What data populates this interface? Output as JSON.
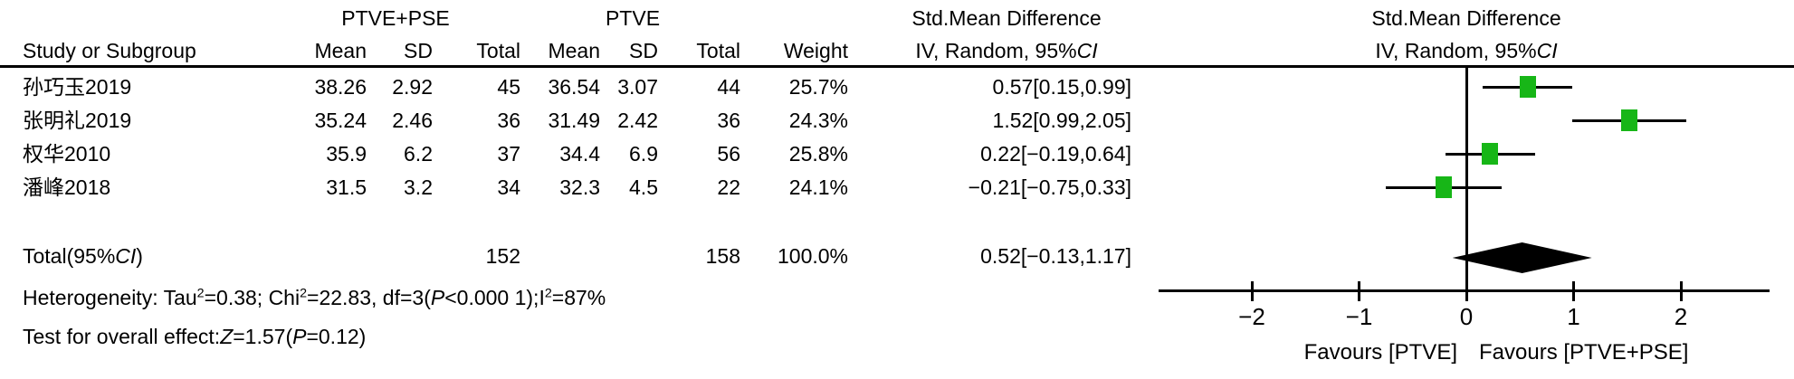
{
  "header": {
    "group1": "PTVE+PSE",
    "group2": "PTVE",
    "smd_left": "Std.Mean Difference",
    "smd_right": "Std.Mean Difference",
    "study_col": "Study or Subgroup",
    "mean1": "Mean",
    "sd1": "SD",
    "total1": "Total",
    "mean2": "Mean",
    "sd2": "SD",
    "total2": "Total",
    "weight": "Weight",
    "iv_left": {
      "prefix": "IV, Random, 95%",
      "ci": "CI"
    },
    "iv_right": {
      "prefix": "IV, Random, 95%",
      "ci": "CI"
    }
  },
  "table": {
    "rows": [
      {
        "study": "孙巧玉2019",
        "mean1": "38.26",
        "sd1": "2.92",
        "total1": "45",
        "mean2": "36.54",
        "sd2": "3.07",
        "total2": "44",
        "weight": "25.7%",
        "estimate": "0.57[0.15,0.99]"
      },
      {
        "study": "张明礼2019",
        "mean1": "35.24",
        "sd1": "2.46",
        "total1": "36",
        "mean2": "31.49",
        "sd2": "2.42",
        "total2": "36",
        "weight": "24.3%",
        "estimate": "1.52[0.99,2.05]"
      },
      {
        "study": "权华2010",
        "mean1": "35.9",
        "sd1": "6.2",
        "total1": "37",
        "mean2": "34.4",
        "sd2": "6.9",
        "total2": "56",
        "weight": "25.8%",
        "estimate": "0.22[−0.19,0.64]"
      },
      {
        "study": "潘峰2018",
        "mean1": "31.5",
        "sd1": "3.2",
        "total1": "34",
        "mean2": "32.3",
        "sd2": "4.5",
        "total2": "22",
        "weight": "24.1%",
        "estimate": "−0.21[−0.75,0.33]"
      }
    ],
    "total_row": {
      "label": {
        "prefix": "Total(95%",
        "ci": "CI",
        "suffix": ")"
      },
      "total1": "152",
      "total2": "158",
      "weight": "100.0%",
      "estimate": "0.52[−0.13,1.17]"
    }
  },
  "footer": {
    "heterogeneity_segments": [
      {
        "t": "Heterogeneity: Tau"
      },
      {
        "t": "2",
        "style": "sup"
      },
      {
        "t": "=0.38; Chi"
      },
      {
        "t": "2",
        "style": "sup"
      },
      {
        "t": "=22.83, df=3("
      },
      {
        "t": "P",
        "style": "it"
      },
      {
        "t": "<0.000 1);I"
      },
      {
        "t": "2",
        "style": "sup"
      },
      {
        "t": "=87%"
      }
    ],
    "overall_effect_segments": [
      {
        "t": "Test for overall effect:"
      },
      {
        "t": "Z",
        "style": "it"
      },
      {
        "t": "=1.57("
      },
      {
        "t": "P",
        "style": "it"
      },
      {
        "t": "=0.12)"
      }
    ]
  },
  "chart_data": {
    "type": "forest",
    "title": "Std.Mean Difference",
    "subtitle": "IV, Random, 95%CI",
    "effect_model": "IV, Random, 95%CI",
    "xlim": [
      -2.85,
      2.85
    ],
    "axis": {
      "ticks": [
        {
          "v": -2,
          "label": "−2"
        },
        {
          "v": -1,
          "label": "−1"
        },
        {
          "v": 0,
          "label": "0"
        },
        {
          "v": 1,
          "label": "1"
        },
        {
          "v": 2,
          "label": "2"
        }
      ]
    },
    "studies": [
      {
        "name": "孙巧玉2019",
        "est": 0.57,
        "lo": 0.15,
        "hi": 0.99,
        "weight": 25.7
      },
      {
        "name": "张明礼2019",
        "est": 1.52,
        "lo": 0.99,
        "hi": 2.05,
        "weight": 24.3
      },
      {
        "name": "权华2010",
        "est": 0.22,
        "lo": -0.19,
        "hi": 0.64,
        "weight": 25.8
      },
      {
        "name": "潘峰2018",
        "est": -0.21,
        "lo": -0.75,
        "hi": 0.33,
        "weight": 24.1
      }
    ],
    "total": {
      "name": "Total(95%CI)",
      "est": 0.52,
      "lo": -0.13,
      "hi": 1.17,
      "weight": 100.0
    },
    "favours_left": "Favours [PTVE]",
    "favours_right": "Favours [PTVE+PSE]",
    "marker_color": "#17b617",
    "diamond_color": "#000000"
  }
}
